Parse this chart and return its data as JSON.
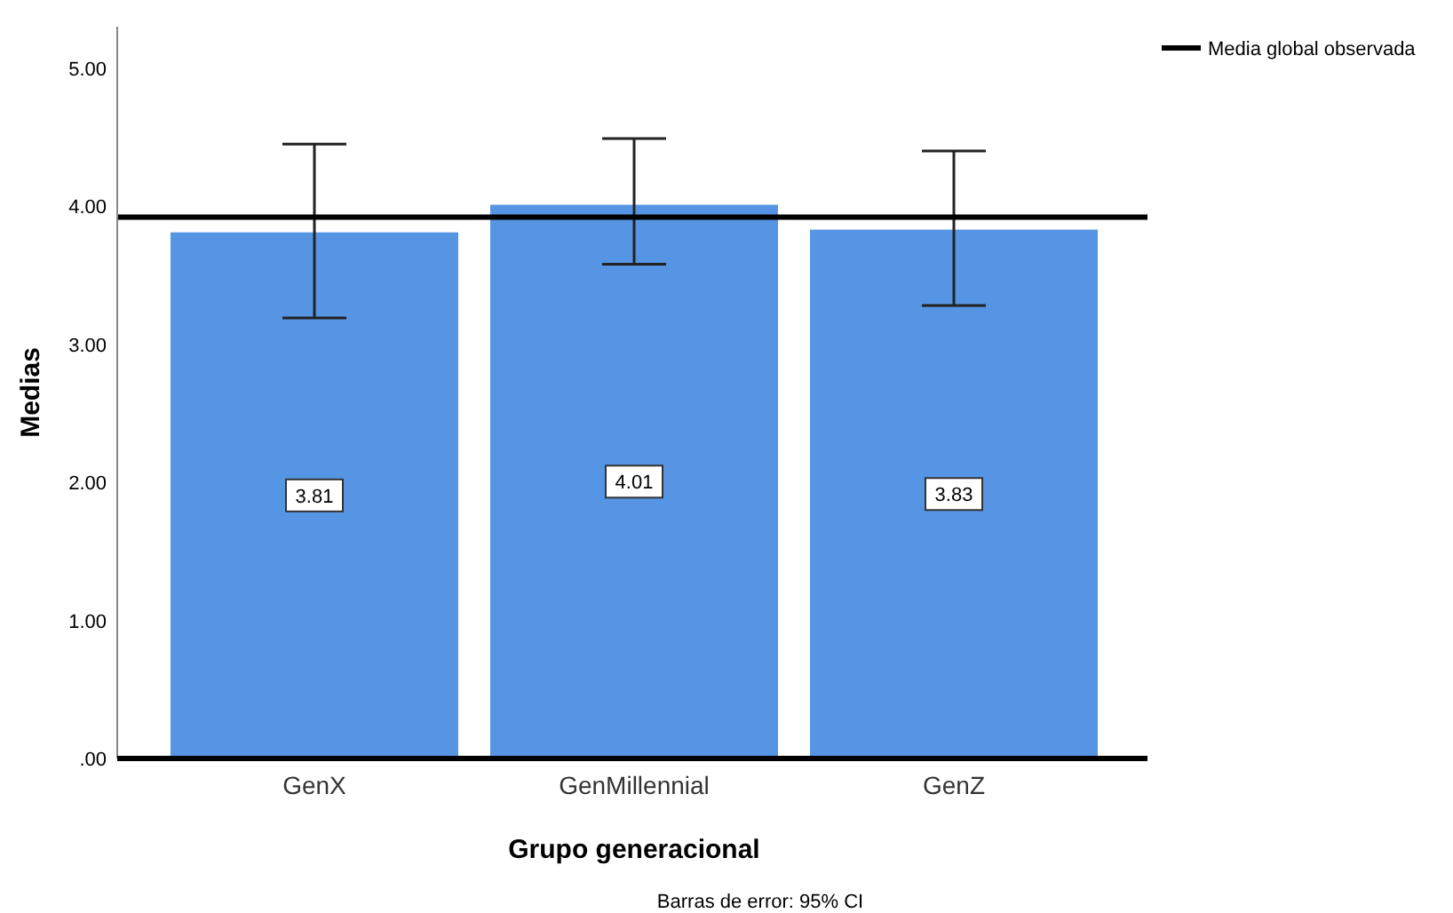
{
  "chart_data": {
    "type": "bar",
    "xlabel": "Grupo generacional",
    "ylabel": "Medias",
    "categories": [
      "GenX",
      "GenMillennial",
      "GenZ"
    ],
    "values": [
      3.81,
      4.01,
      3.83
    ],
    "color": "#5595e3",
    "errors": [
      [
        3.19,
        4.45
      ],
      [
        3.58,
        4.49
      ],
      [
        3.28,
        4.4
      ]
    ],
    "data_labels": true,
    "ylim": [
      0,
      5.3
    ],
    "yticks": [
      {
        "value": 0,
        "label": ".00"
      },
      {
        "value": 1,
        "label": "1.00"
      },
      {
        "value": 2,
        "label": "2.00"
      },
      {
        "value": 3,
        "label": "3.00"
      },
      {
        "value": 4,
        "label": "4.00"
      },
      {
        "value": 5,
        "label": "5.00"
      }
    ],
    "ref_lines": [
      {
        "axis": "y",
        "value": 3.92,
        "label": "Media global observada",
        "color": "#000000"
      }
    ],
    "legend": "top right",
    "annotations": [
      "Barras de error: 95% CI"
    ]
  }
}
